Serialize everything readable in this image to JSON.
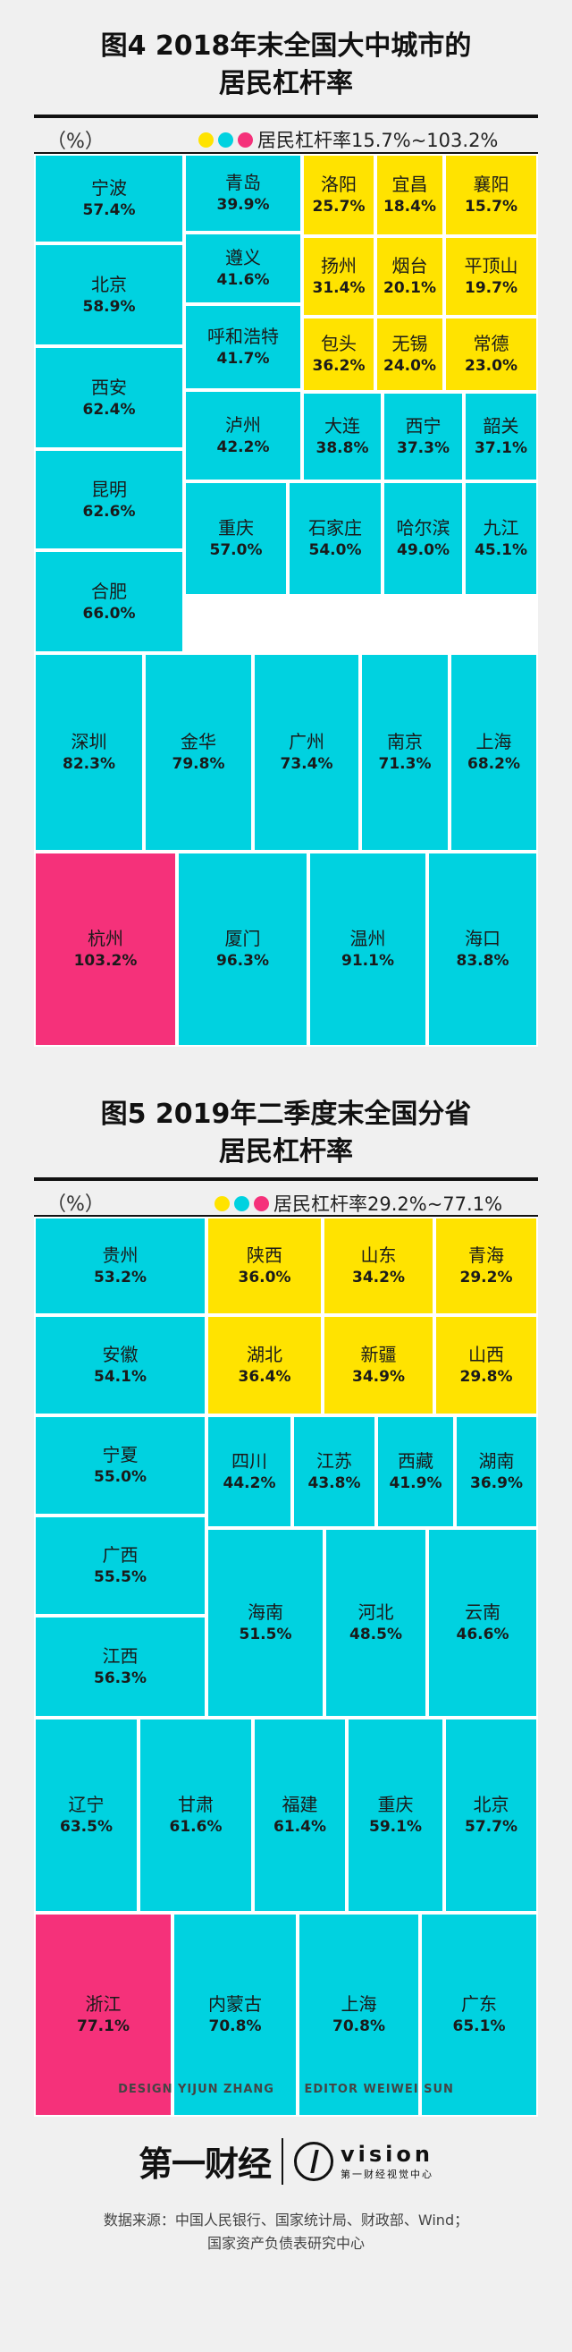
{
  "colors": {
    "cyan": "#00d2e0",
    "yellow": "#ffe300",
    "pink": "#f5317a"
  },
  "chart_data": [
    {
      "type": "treemap",
      "title_line1": "图4 2018年末全国大中城市的",
      "title_line2": "居民杠杆率",
      "unit": "（%）",
      "legend_label": "居民杠杆率15.7%~103.2%",
      "cells": [
        {
          "name": "宁波",
          "value": "57.4%",
          "color": "cyan"
        },
        {
          "name": "北京",
          "value": "58.9%",
          "color": "cyan"
        },
        {
          "name": "西安",
          "value": "62.4%",
          "color": "cyan"
        },
        {
          "name": "昆明",
          "value": "62.6%",
          "color": "cyan"
        },
        {
          "name": "合肥",
          "value": "66.0%",
          "color": "cyan"
        },
        {
          "name": "青岛",
          "value": "39.9%",
          "color": "cyan"
        },
        {
          "name": "遵义",
          "value": "41.6%",
          "color": "cyan"
        },
        {
          "name": "呼和浩特",
          "value": "41.7%",
          "color": "cyan"
        },
        {
          "name": "泸州",
          "value": "42.2%",
          "color": "cyan"
        },
        {
          "name": "洛阳",
          "value": "25.7%",
          "color": "yellow"
        },
        {
          "name": "宜昌",
          "value": "18.4%",
          "color": "yellow"
        },
        {
          "name": "襄阳",
          "value": "15.7%",
          "color": "yellow"
        },
        {
          "name": "扬州",
          "value": "31.4%",
          "color": "yellow"
        },
        {
          "name": "烟台",
          "value": "20.1%",
          "color": "yellow"
        },
        {
          "name": "平顶山",
          "value": "19.7%",
          "color": "yellow"
        },
        {
          "name": "包头",
          "value": "36.2%",
          "color": "yellow"
        },
        {
          "name": "无锡",
          "value": "24.0%",
          "color": "yellow"
        },
        {
          "name": "常德",
          "value": "23.0%",
          "color": "yellow"
        },
        {
          "name": "大连",
          "value": "38.8%",
          "color": "cyan"
        },
        {
          "name": "西宁",
          "value": "37.3%",
          "color": "cyan"
        },
        {
          "name": "韶关",
          "value": "37.1%",
          "color": "cyan"
        },
        {
          "name": "重庆",
          "value": "57.0%",
          "color": "cyan"
        },
        {
          "name": "石家庄",
          "value": "54.0%",
          "color": "cyan"
        },
        {
          "name": "哈尔滨",
          "value": "49.0%",
          "color": "cyan"
        },
        {
          "name": "九江",
          "value": "45.1%",
          "color": "cyan"
        },
        {
          "name": "深圳",
          "value": "82.3%",
          "color": "cyan"
        },
        {
          "name": "金华",
          "value": "79.8%",
          "color": "cyan"
        },
        {
          "name": "广州",
          "value": "73.4%",
          "color": "cyan"
        },
        {
          "name": "南京",
          "value": "71.3%",
          "color": "cyan"
        },
        {
          "name": "上海",
          "value": "68.2%",
          "color": "cyan"
        },
        {
          "name": "杭州",
          "value": "103.2%",
          "color": "pink"
        },
        {
          "name": "厦门",
          "value": "96.3%",
          "color": "cyan"
        },
        {
          "name": "温州",
          "value": "91.1%",
          "color": "cyan"
        },
        {
          "name": "海口",
          "value": "83.8%",
          "color": "cyan"
        }
      ]
    },
    {
      "type": "treemap",
      "title_line1": "图5 2019年二季度末全国分省",
      "title_line2": "居民杠杆率",
      "unit": "（%）",
      "legend_label": "居民杠杆率29.2%~77.1%",
      "cells": [
        {
          "name": "贵州",
          "value": "53.2%",
          "color": "cyan"
        },
        {
          "name": "安徽",
          "value": "54.1%",
          "color": "cyan"
        },
        {
          "name": "宁夏",
          "value": "55.0%",
          "color": "cyan"
        },
        {
          "name": "广西",
          "value": "55.5%",
          "color": "cyan"
        },
        {
          "name": "江西",
          "value": "56.3%",
          "color": "cyan"
        },
        {
          "name": "陕西",
          "value": "36.0%",
          "color": "yellow"
        },
        {
          "name": "山东",
          "value": "34.2%",
          "color": "yellow"
        },
        {
          "name": "青海",
          "value": "29.2%",
          "color": "yellow"
        },
        {
          "name": "湖北",
          "value": "36.4%",
          "color": "yellow"
        },
        {
          "name": "新疆",
          "value": "34.9%",
          "color": "yellow"
        },
        {
          "name": "山西",
          "value": "29.8%",
          "color": "yellow"
        },
        {
          "name": "四川",
          "value": "44.2%",
          "color": "cyan"
        },
        {
          "name": "江苏",
          "value": "43.8%",
          "color": "cyan"
        },
        {
          "name": "西藏",
          "value": "41.9%",
          "color": "cyan"
        },
        {
          "name": "湖南",
          "value": "36.9%",
          "color": "cyan"
        },
        {
          "name": "海南",
          "value": "51.5%",
          "color": "cyan"
        },
        {
          "name": "河北",
          "value": "48.5%",
          "color": "cyan"
        },
        {
          "name": "云南",
          "value": "46.6%",
          "color": "cyan"
        },
        {
          "name": "辽宁",
          "value": "63.5%",
          "color": "cyan"
        },
        {
          "name": "甘肃",
          "value": "61.6%",
          "color": "cyan"
        },
        {
          "name": "福建",
          "value": "61.4%",
          "color": "cyan"
        },
        {
          "name": "重庆",
          "value": "59.1%",
          "color": "cyan"
        },
        {
          "name": "北京",
          "value": "57.7%",
          "color": "cyan"
        },
        {
          "name": "浙江",
          "value": "77.1%",
          "color": "pink"
        },
        {
          "name": "内蒙古",
          "value": "70.8%",
          "color": "cyan"
        },
        {
          "name": "上海",
          "value": "70.8%",
          "color": "cyan"
        },
        {
          "name": "广东",
          "value": "65.1%",
          "color": "cyan"
        }
      ]
    }
  ],
  "credits": {
    "design": "DESIGN YIJUN ZHANG",
    "editor": "EDITOR WEIWEI SUN"
  },
  "logo": {
    "main": "第一财经",
    "vision": "vision",
    "vision_sub": "第一财经视觉中心"
  },
  "source": {
    "line1": "数据来源：中国人民银行、国家统计局、财政部、Wind；",
    "line2": "国家资产负债表研究中心"
  }
}
